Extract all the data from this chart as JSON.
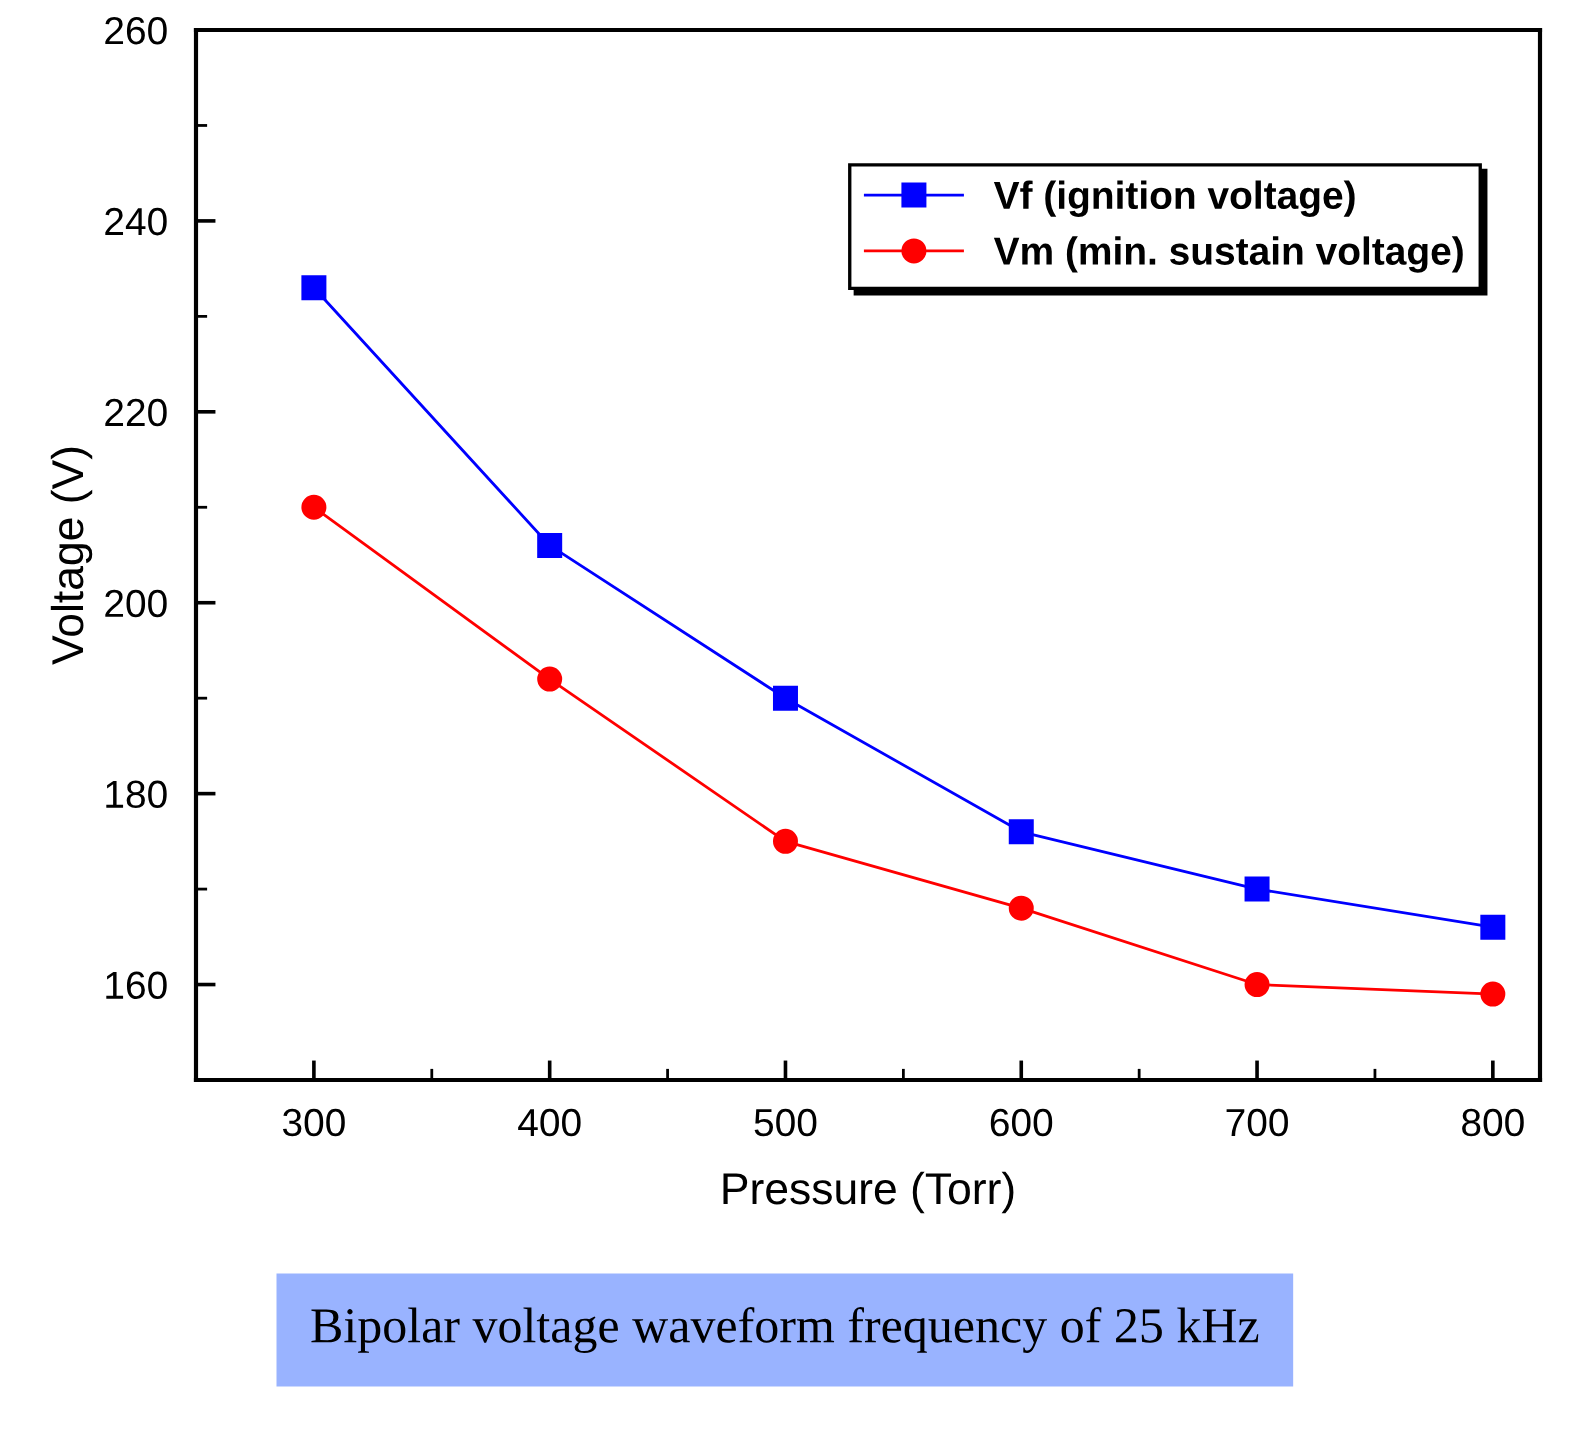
{
  "chart_data": {
    "type": "line",
    "xlabel": "Pressure (Torr)",
    "ylabel": "Voltage (V)",
    "x": [
      300,
      400,
      500,
      600,
      700,
      800
    ],
    "series": [
      {
        "name": "Vf (ignition voltage)",
        "color": "#0000ff",
        "marker": "square",
        "values": [
          233,
          206,
          190,
          176,
          170,
          166
        ]
      },
      {
        "name": "Vm (min. sustain voltage)",
        "color": "#ff0000",
        "marker": "circle",
        "values": [
          210,
          192,
          175,
          168,
          160,
          159
        ]
      }
    ],
    "xlim": [
      250,
      820
    ],
    "ylim": [
      150,
      260
    ],
    "xticks": [
      300,
      400,
      500,
      600,
      700,
      800
    ],
    "yticks": [
      160,
      180,
      200,
      220,
      240,
      260
    ],
    "grid": false,
    "legend": "top right",
    "annotations": [
      "Bipolar voltage waveform frequency of 25 kHz"
    ]
  }
}
